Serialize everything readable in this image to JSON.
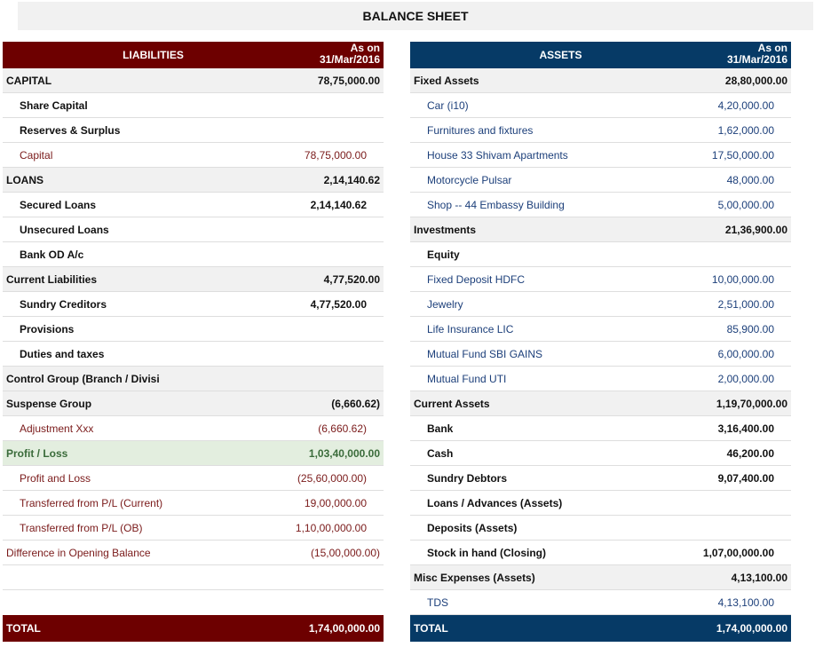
{
  "title": "BALANCE SHEET",
  "liabilities": {
    "header": "LIABILITIES",
    "as_on_line1": "As on",
    "as_on_line2": "31/Mar/2016",
    "rows": [
      {
        "type": "group",
        "label": "CAPITAL",
        "value": "78,75,000.00"
      },
      {
        "type": "sub",
        "label": "Share Capital",
        "value": ""
      },
      {
        "type": "sub",
        "label": "Reserves & Surplus",
        "value": ""
      },
      {
        "type": "ledger",
        "label": "Capital",
        "value": "78,75,000.00"
      },
      {
        "type": "group",
        "label": "LOANS",
        "value": "2,14,140.62"
      },
      {
        "type": "sub",
        "label": "Secured Loans",
        "value": "2,14,140.62"
      },
      {
        "type": "sub",
        "label": "Unsecured Loans",
        "value": ""
      },
      {
        "type": "sub",
        "label": "Bank OD A/c",
        "value": ""
      },
      {
        "type": "group",
        "label": "Current Liabilities",
        "value": "4,77,520.00"
      },
      {
        "type": "sub",
        "label": "Sundry Creditors",
        "value": "4,77,520.00"
      },
      {
        "type": "sub",
        "label": "Provisions",
        "value": ""
      },
      {
        "type": "sub",
        "label": "Duties and taxes",
        "value": ""
      },
      {
        "type": "group",
        "label": "Control Group (Branch / Divisi",
        "value": ""
      },
      {
        "type": "group",
        "label": "Suspense Group",
        "value": "(6,660.62)"
      },
      {
        "type": "ledger",
        "label": "Adjustment Xxx",
        "value": "(6,660.62)"
      },
      {
        "type": "pl",
        "label": "Profit / Loss",
        "value": "1,03,40,000.00"
      },
      {
        "type": "ledger",
        "label": "Profit and Loss",
        "value": "(25,60,000.00)"
      },
      {
        "type": "ledger",
        "label": "Transferred from P/L (Current)",
        "value": "19,00,000.00"
      },
      {
        "type": "ledger",
        "label": "Transferred from P/L (OB)",
        "value": "1,10,00,000.00"
      },
      {
        "type": "top-ledger",
        "label": "Difference in Opening Balance",
        "value": "(15,00,000.00)"
      },
      {
        "type": "blank",
        "label": "",
        "value": ""
      }
    ],
    "total_label": "TOTAL",
    "total_value": "1,74,00,000.00"
  },
  "assets": {
    "header": "ASSETS",
    "as_on_line1": "As on",
    "as_on_line2": "31/Mar/2016",
    "rows": [
      {
        "type": "group",
        "label": "Fixed Assets",
        "value": "28,80,000.00"
      },
      {
        "type": "ledger",
        "label": "Car (i10)",
        "value": "4,20,000.00"
      },
      {
        "type": "ledger",
        "label": "Furnitures and fixtures",
        "value": "1,62,000.00"
      },
      {
        "type": "ledger",
        "label": "House 33 Shivam Apartments",
        "value": "17,50,000.00"
      },
      {
        "type": "ledger",
        "label": "Motorcycle Pulsar",
        "value": "48,000.00"
      },
      {
        "type": "ledger",
        "label": "Shop -- 44 Embassy Building",
        "value": "5,00,000.00"
      },
      {
        "type": "group",
        "label": "Investments",
        "value": "21,36,900.00"
      },
      {
        "type": "sub",
        "label": "Equity",
        "value": ""
      },
      {
        "type": "ledger",
        "label": "Fixed Deposit HDFC",
        "value": "10,00,000.00"
      },
      {
        "type": "ledger",
        "label": "Jewelry",
        "value": "2,51,000.00"
      },
      {
        "type": "ledger",
        "label": "Life Insurance LIC",
        "value": "85,900.00"
      },
      {
        "type": "ledger",
        "label": "Mutual Fund SBI GAINS",
        "value": "6,00,000.00"
      },
      {
        "type": "ledger",
        "label": "Mutual Fund UTI",
        "value": "2,00,000.00"
      },
      {
        "type": "group",
        "label": "Current Assets",
        "value": "1,19,70,000.00"
      },
      {
        "type": "sub",
        "label": "Bank",
        "value": "3,16,400.00"
      },
      {
        "type": "sub",
        "label": "Cash",
        "value": "46,200.00"
      },
      {
        "type": "sub",
        "label": "Sundry Debtors",
        "value": "9,07,400.00"
      },
      {
        "type": "sub",
        "label": "Loans / Advances (Assets)",
        "value": ""
      },
      {
        "type": "sub",
        "label": "Deposits (Assets)",
        "value": ""
      },
      {
        "type": "sub",
        "label": "Stock in hand (Closing)",
        "value": "1,07,00,000.00"
      },
      {
        "type": "group",
        "label": "Misc Expenses (Assets)",
        "value": "4,13,100.00"
      },
      {
        "type": "ledger",
        "label": "TDS",
        "value": "4,13,100.00"
      }
    ],
    "total_label": "TOTAL",
    "total_value": "1,74,00,000.00"
  }
}
